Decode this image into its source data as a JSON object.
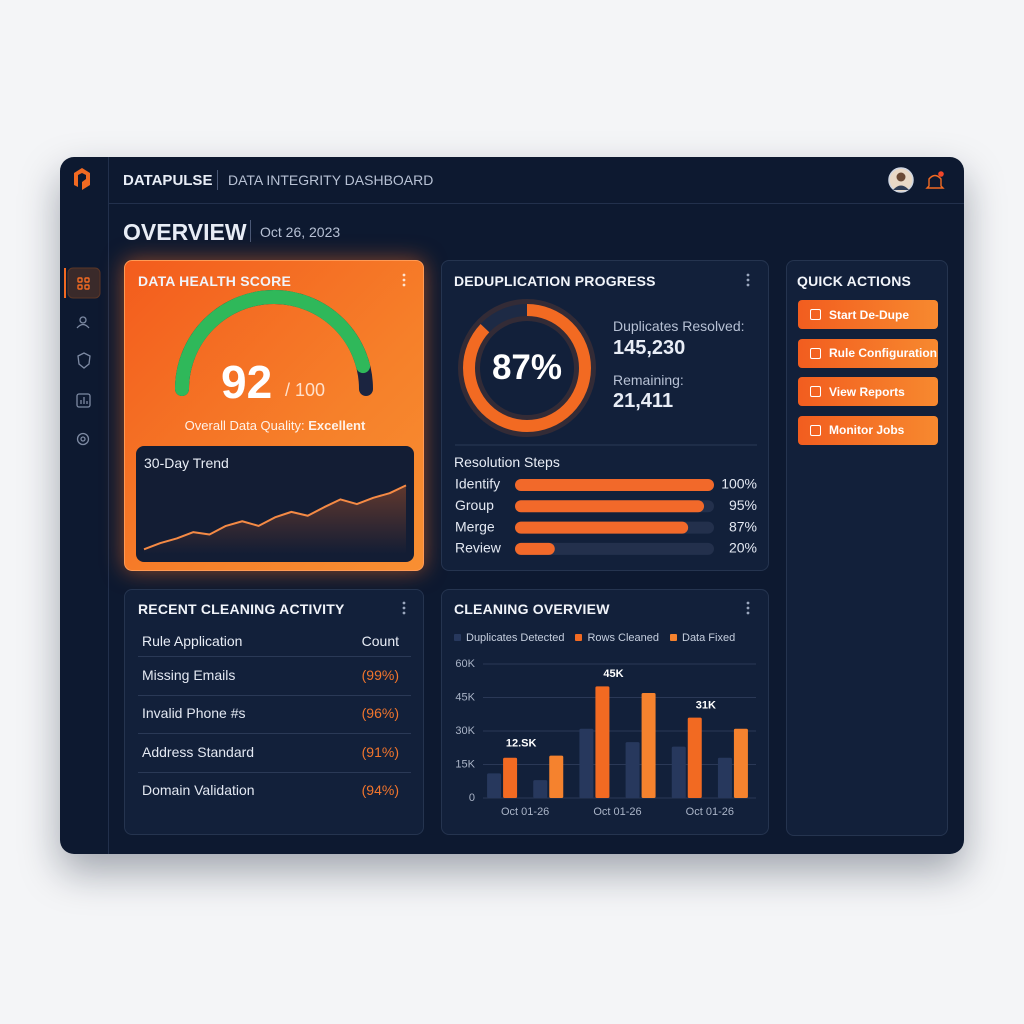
{
  "header": {
    "brand": "DATAPULSE",
    "title": "DATA INTEGRITY DASHBOARD"
  },
  "overview": {
    "title": "OVERVIEW",
    "date": "Oct 26, 2023"
  },
  "health": {
    "title": "DATA HEALTH SCORE",
    "score": 92,
    "max": {
      "value": 100,
      "label": "/ 100"
    },
    "quality_label": "Overall Data Quality:",
    "quality": "Excellent",
    "trend": {
      "title": "30-Day Trend",
      "values": [
        6,
        14,
        20,
        28,
        25,
        36,
        42,
        36,
        47,
        54,
        49,
        60,
        70,
        64,
        72,
        78,
        88
      ],
      "ylim": [
        0,
        100
      ]
    }
  },
  "dedup": {
    "title": "DEDUPLICATION PROGRESS",
    "percent": {
      "value": 87,
      "label": "87%"
    },
    "resolved_label": "Duplicates Resolved:",
    "resolved": "145,230",
    "remaining_label": "Remaining:",
    "remaining": "21,411",
    "steps": {
      "title": "Resolution Steps",
      "categories": [
        "Identify",
        "Group",
        "Merge",
        "Review"
      ],
      "values": [
        100,
        95,
        87,
        20
      ],
      "value_labels": [
        "100%",
        "95%",
        "87%",
        "20%"
      ],
      "xlim": [
        0,
        100
      ]
    }
  },
  "quick_actions": {
    "title": "QUICK ACTIONS",
    "buttons": [
      "Start De-Dupe",
      "Rule Configuration",
      "View Reports",
      "Monitor Jobs"
    ]
  },
  "recent": {
    "title": "RECENT CLEANING ACTIVITY",
    "columns": [
      "Rule Application",
      "Count"
    ],
    "rows": [
      [
        "Missing Emails",
        "(99%)"
      ],
      [
        "Invalid Phone #s",
        "(96%)"
      ],
      [
        "Address Standard",
        "(91%)"
      ],
      [
        "Domain Validation",
        "(94%)"
      ]
    ]
  },
  "chart_data": {
    "type": "bar",
    "title": "CLEANING OVERVIEW",
    "categories": [
      "Oct 01-26",
      null,
      "Oct 01-26",
      null,
      "Oct 01-26",
      null
    ],
    "series": [
      {
        "name": "Duplicates Detected",
        "color": "#27385d",
        "values": [
          11000,
          8000,
          31000,
          25000,
          23000,
          18000
        ]
      },
      {
        "name": "Rows Cleaned",
        "color": "#f26a22",
        "values": [
          18000,
          null,
          50000,
          null,
          36000,
          null
        ]
      },
      {
        "name": "Data Fixed",
        "color": "#f5822e",
        "values": [
          null,
          19000,
          null,
          47000,
          null,
          31000
        ]
      }
    ],
    "annotations": [
      "12.SK",
      "45K",
      "31K"
    ],
    "ylim": [
      0,
      60000
    ],
    "yticks": [
      0,
      {
        "value": 15000,
        "label": "15K"
      },
      {
        "value": 30000,
        "label": "30K"
      },
      {
        "value": 45000,
        "label": "45K"
      },
      {
        "value": 60000,
        "label": "60K"
      }
    ],
    "grid": true
  }
}
